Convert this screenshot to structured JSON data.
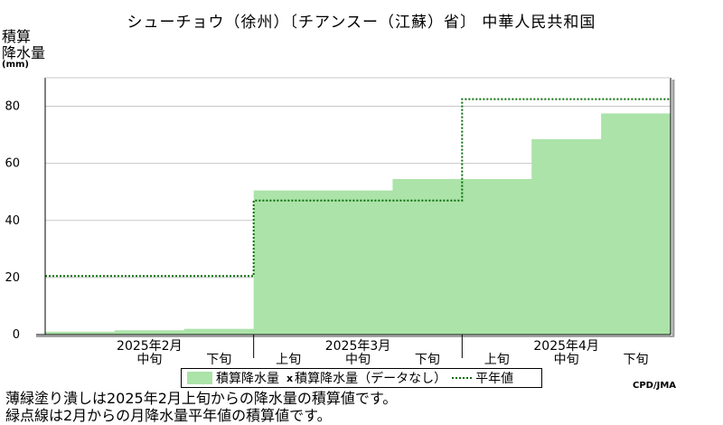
{
  "title": "シューチョウ（徐州）〔チアンスー（江蘇）省〕 中華人民共和国",
  "ylabel_lines": [
    "積算",
    "降水量"
  ],
  "yunit": "(mm)",
  "legend": {
    "filled": "積算降水量",
    "marker": "x",
    "nodata": "積算降水量（データなし）",
    "normal": "平年値"
  },
  "credit": "CPD/JMA",
  "notes": [
    "薄緑塗り潰しは2025年2月上旬からの降水量の積算値です。",
    "緑点線は2月からの月降水量平年値の積算値です。"
  ],
  "chart_data": {
    "type": "area",
    "ylim": [
      0,
      90
    ],
    "yticks": [
      0,
      20,
      40,
      60,
      80
    ],
    "x_periods": [
      "2月上旬",
      "2月中旬",
      "2月下旬",
      "3月上旬",
      "3月中旬",
      "3月下旬",
      "4月上旬",
      "4月中旬",
      "4月下旬"
    ],
    "period_labels": [
      "",
      "中旬",
      "下旬",
      "上旬",
      "中旬",
      "下旬",
      "上旬",
      "中旬",
      "下旬"
    ],
    "month_labels": [
      {
        "text": "2025年2月",
        "period": 1
      },
      {
        "text": "2025年3月",
        "period": 4
      },
      {
        "text": "2025年4月",
        "period": 7
      }
    ],
    "series": [
      {
        "name": "積算降水量",
        "values": [
          1,
          1.5,
          2,
          50.5,
          50.5,
          54.5,
          54.5,
          68.5,
          77.5
        ],
        "color": "#abe3a8"
      },
      {
        "name": "平年値",
        "values": [
          20.5,
          20.5,
          20.5,
          47,
          47,
          47,
          82.5,
          82.5,
          82.5
        ],
        "color": "#0a6e0a"
      }
    ],
    "grid": true
  }
}
